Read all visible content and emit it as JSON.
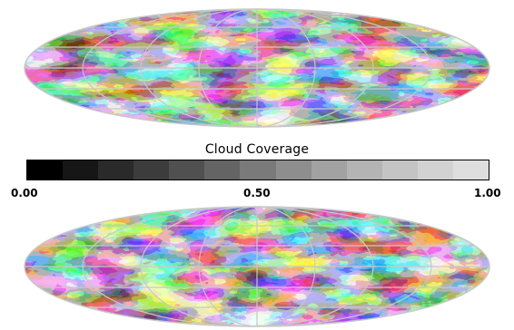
{
  "figure": {
    "colorbar": {
      "title": "Cloud Coverage",
      "tick_labels": [
        "0.00",
        "0.50",
        "1.00"
      ],
      "steps": [
        "#000000",
        "#161616",
        "#2a2a2a",
        "#3c3c3c",
        "#505050",
        "#646464",
        "#7a7a7a",
        "#8e8e8e",
        "#a2a2a2",
        "#b4b4b4",
        "#c4c4c4",
        "#d2d2d2",
        "#dedede"
      ]
    },
    "maps": [
      {
        "name": "top-map",
        "projection": "Mollweide (oval, full-sky)",
        "colormap": "grayscale",
        "graticule": true
      },
      {
        "name": "bottom-map",
        "projection": "Mollweide (oval, full-sky)",
        "colormap": "grayscale",
        "graticule": true
      }
    ]
  }
}
